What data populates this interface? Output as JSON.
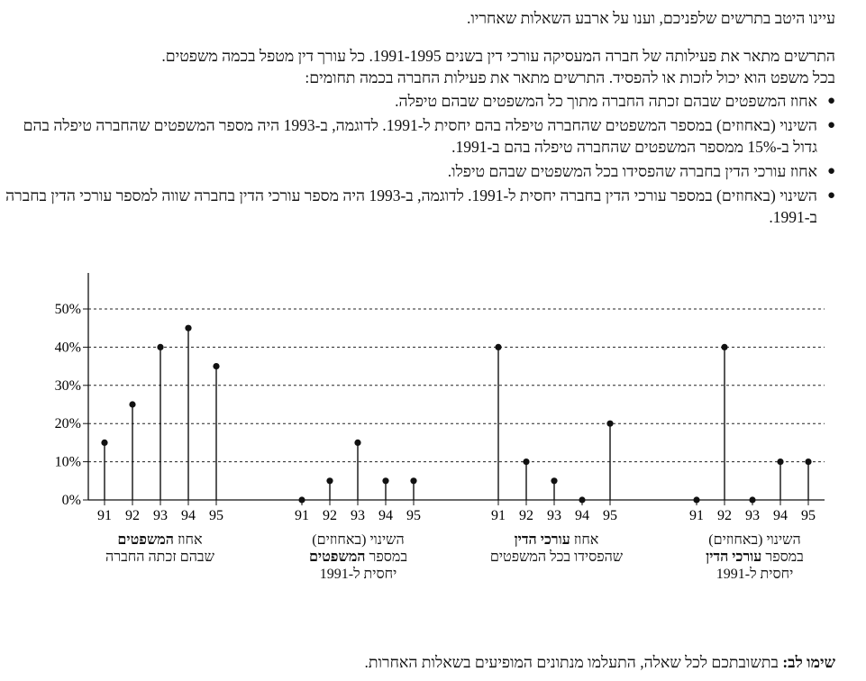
{
  "intro": "עיינו היטב בתרשים שלפניכם, וענו על ארבע השאלות שאחריו.",
  "paragraph": [
    "התרשים מתאר את פעילותה של חברה המעסיקה עורכי דין בשנים 1991-1995.  כל עורך דין מטפל בכמה משפטים.",
    "בכל משפט הוא יכול לזכות או להפסיד. התרשים מתאר את פעילות החברה בכמה תחומים:"
  ],
  "bullets": [
    "אחוז המשפטים שבהם זכתה החברה מתוך כל המשפטים שבהם טיפלה.",
    "השינוי (באחוזים) במספר המשפטים שהחברה טיפלה בהם יחסית ל-1991.  לדוגמה, ב-1993 היה מספר המשפטים שהחברה טיפלה בהם גדול ב-15% ממספר המשפטים שהחברה טיפלה בהם ב-1991.",
    "אחוז עורכי הדין בחברה שהפסידו בכל המשפטים שבהם טיפלו.",
    "השינוי (באחוזים) במספר עורכי הדין בחברה יחסית ל-1991.  לדוגמה, ב-1993 היה מספר עורכי הדין בחברה שווה למספר עורכי הדין בחברה ב-1991."
  ],
  "chart_data": {
    "type": "stem",
    "y_ticks": [
      "0%",
      "10%",
      "20%",
      "30%",
      "40%",
      "50%"
    ],
    "ylim": [
      0,
      50
    ],
    "grid": "dashed horizontal",
    "panels": [
      {
        "years": [
          "91",
          "92",
          "93",
          "94",
          "95"
        ],
        "values": [
          15,
          25,
          40,
          45,
          35
        ],
        "caption": [
          {
            "pre": "אחוז ",
            "bold": "המשפטים",
            "post": ""
          },
          {
            "pre": "שבהם זכתה החברה",
            "bold": "",
            "post": ""
          }
        ]
      },
      {
        "years": [
          "91",
          "92",
          "93",
          "94",
          "95"
        ],
        "values": [
          0,
          5,
          15,
          5,
          5
        ],
        "caption": [
          {
            "pre": "השינוי (באחוזים)",
            "bold": "",
            "post": ""
          },
          {
            "pre": "במספר ",
            "bold": "המשפטים",
            "post": ""
          },
          {
            "pre": "יחסית ל-1991",
            "bold": "",
            "post": ""
          }
        ]
      },
      {
        "years": [
          "91",
          "92",
          "93",
          "94",
          "95"
        ],
        "values": [
          40,
          10,
          5,
          0,
          20
        ],
        "caption": [
          {
            "pre": "אחוז ",
            "bold": "עורכי הדין",
            "post": ""
          },
          {
            "pre": "שהפסידו בכל המשפטים",
            "bold": "",
            "post": ""
          }
        ]
      },
      {
        "years": [
          "91",
          "92",
          "93",
          "94",
          "95"
        ],
        "values": [
          0,
          40,
          0,
          10,
          10
        ],
        "caption": [
          {
            "pre": "השינוי (באחוזים)",
            "bold": "",
            "post": ""
          },
          {
            "pre": "במספר ",
            "bold": "עורכי הדין",
            "post": ""
          },
          {
            "pre": "יחסית ל-1991",
            "bold": "",
            "post": ""
          }
        ]
      }
    ]
  },
  "note": {
    "bold": "שימו לב:",
    "text": " בתשובתכם לכל שאלה, התעלמו מנתונים המופיעים בשאלות האחרות."
  }
}
